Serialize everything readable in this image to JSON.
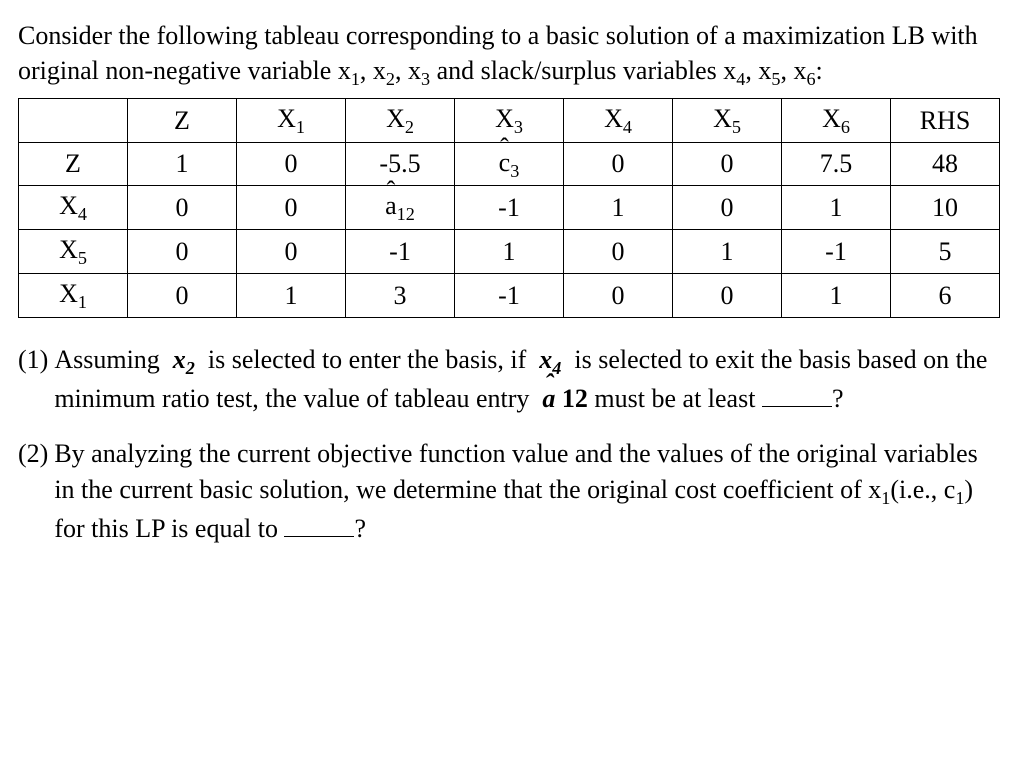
{
  "intro_html": "Consider the following tableau corresponding to a basic solution of a maximization LB with original non-negative variable x<span class=\"sub\">1</span>, x<span class=\"sub\">2</span>, x<span class=\"sub\">3</span> and slack/surplus variables x<span class=\"sub\">4</span>, x<span class=\"sub\">5</span>, x<span class=\"sub\">6</span>:",
  "tableau": {
    "col_headers_html": [
      "",
      "Z",
      "X<span class=\"sub\">1</span>",
      "X<span class=\"sub\">2</span>",
      "X<span class=\"sub\">3</span>",
      "X<span class=\"sub\">4</span>",
      "X<span class=\"sub\">5</span>",
      "X<span class=\"sub\">6</span>",
      "RHS"
    ],
    "rows": [
      {
        "label_html": "Z",
        "cells_html": [
          "1",
          "0",
          "-5.5",
          "<span class=\"hat\">c</span><span class=\"sub\">3</span>",
          "0",
          "0",
          "7.5",
          "48"
        ]
      },
      {
        "label_html": "X<span class=\"sub\">4</span>",
        "cells_html": [
          "0",
          "0",
          "<span class=\"hat\">a</span><span class=\"sub\">12</span>",
          "-1",
          "1",
          "0",
          "1",
          "10"
        ]
      },
      {
        "label_html": "X<span class=\"sub\">5</span>",
        "cells_html": [
          "0",
          "0",
          "-1",
          "1",
          "0",
          "1",
          "-1",
          "5"
        ]
      },
      {
        "label_html": "X<span class=\"sub\">1</span>",
        "cells_html": [
          "0",
          "1",
          "3",
          "-1",
          "0",
          "0",
          "1",
          "6"
        ]
      }
    ],
    "border_color": "#000000",
    "background_color": "#ffffff",
    "font_size_pt": 20
  },
  "q1": {
    "num": "(1)",
    "body_html": "Assuming&nbsp; <span class=\"bi\">x</span><span class=\"sub bi\">2</span>&nbsp; is selected to enter the basis, if&nbsp; <span class=\"bi\">x</span><span class=\"sub bi\">4</span>&nbsp; is selected to exit the basis based on the minimum ratio test, the value of tableau entry&nbsp; <span class=\"bi\"><span class=\"hat\">a</span></span>&nbsp;<b>12</b> must be at least <span class=\"blank\"></span>?"
  },
  "q2": {
    "num": "(2)",
    "body_html": "By analyzing the current objective function value and the values of the original variables in the current basic solution, we determine that the original cost coefficient of x<span class=\"sub\">1</span>(i.e., c<span class=\"sub\">1</span>) for this LP is equal to <span class=\"blank\"></span>?"
  },
  "colors": {
    "text": "#000000",
    "background": "#ffffff"
  },
  "typography": {
    "family": "Times New Roman",
    "body_pt": 20
  }
}
